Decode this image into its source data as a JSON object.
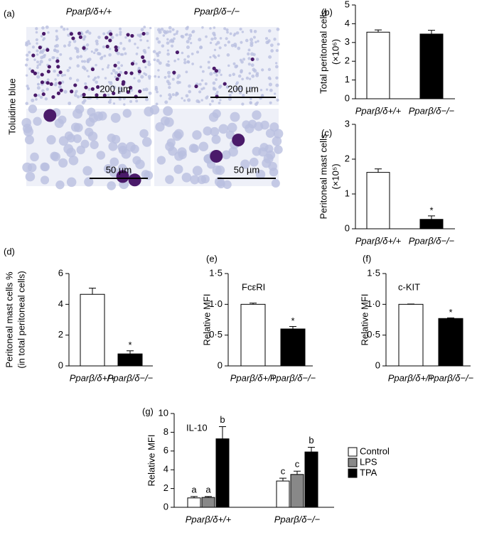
{
  "figure": {
    "panel": "(a)",
    "columns": [
      "Pparβ/δ+/+",
      "Pparβ/δ−/−"
    ],
    "row_label": "Toluidine blue",
    "scale_bars": [
      "200 µm",
      "200 µm",
      "50 µm",
      "50 µm"
    ]
  },
  "chart_data": [
    {
      "type": "bar",
      "panel": "(b)",
      "ylabel": [
        "Total peritoneal cells",
        "(×10⁶)"
      ],
      "categories": [
        "Pparβ/δ+/+",
        "Pparβ/δ−/−"
      ],
      "values": [
        3.55,
        3.45
      ],
      "errors": [
        0.12,
        0.2
      ],
      "colors": [
        "#ffffff",
        "#000000"
      ],
      "ylim": [
        0,
        5
      ],
      "yticks": [
        0,
        1,
        2,
        3,
        4,
        5
      ],
      "significance": [
        null,
        null
      ]
    },
    {
      "type": "bar",
      "panel": "(c)",
      "ylabel": [
        "Peritoneal mast cells",
        "(×10⁵)"
      ],
      "categories": [
        "Pparβ/δ+/+",
        "Pparβ/δ−/−"
      ],
      "values": [
        1.62,
        0.27
      ],
      "errors": [
        0.1,
        0.1
      ],
      "colors": [
        "#ffffff",
        "#000000"
      ],
      "ylim": [
        0,
        3
      ],
      "yticks": [
        0,
        1,
        2,
        3
      ],
      "significance": [
        null,
        "*"
      ]
    },
    {
      "type": "bar",
      "panel": "(d)",
      "ylabel": [
        "Peritoneal mast cells %",
        "(in total peritoneal cells)"
      ],
      "categories": [
        "Pparβ/δ+/+",
        "Pparβ/δ−/−"
      ],
      "values": [
        4.65,
        0.78
      ],
      "errors": [
        0.4,
        0.2
      ],
      "colors": [
        "#ffffff",
        "#000000"
      ],
      "ylim": [
        0,
        6
      ],
      "yticks": [
        0,
        2,
        4,
        6
      ],
      "significance": [
        null,
        "*"
      ]
    },
    {
      "type": "bar",
      "panel": "(e)",
      "label": "FcεRI",
      "ylabel": [
        "Relative MFI"
      ],
      "categories": [
        "Pparβ/δ+/+",
        "Pparβ/δ−/−"
      ],
      "values": [
        1.0,
        0.6
      ],
      "errors": [
        0.02,
        0.04
      ],
      "colors": [
        "#ffffff",
        "#000000"
      ],
      "ylim": [
        0,
        1.5
      ],
      "yticks": [
        0,
        {
          "value": 0.5,
          "label": "0·5"
        },
        {
          "value": 1.0,
          "label": "1·0"
        },
        {
          "value": 1.5,
          "label": "1·5"
        }
      ],
      "significance": [
        null,
        "*"
      ]
    },
    {
      "type": "bar",
      "panel": "(f)",
      "label": "c-KIT",
      "ylabel": [
        "Relative MFI"
      ],
      "categories": [
        "Pparβ/δ+/+",
        "Pparβ/δ−/−"
      ],
      "values": [
        1.0,
        0.77
      ],
      "errors": [
        0.005,
        0.01
      ],
      "colors": [
        "#ffffff",
        "#000000"
      ],
      "ylim": [
        0,
        1.5
      ],
      "yticks": [
        0,
        {
          "value": 0.5,
          "label": "0·5"
        },
        {
          "value": 1.0,
          "label": "1·0"
        },
        {
          "value": 1.5,
          "label": "1·5"
        }
      ],
      "significance": [
        null,
        "*"
      ]
    },
    {
      "type": "grouped_bar",
      "panel": "(g)",
      "label": "IL-10",
      "ylabel": [
        "Relative MFI"
      ],
      "categories": [
        "Pparβ/δ+/+",
        "Pparβ/δ−/−"
      ],
      "ylim": [
        0,
        10
      ],
      "yticks": [
        0,
        2,
        4,
        6,
        8,
        10
      ],
      "series": [
        {
          "name": "Control",
          "color": "#ffffff",
          "values": [
            1.0,
            2.8
          ],
          "errors": [
            0.15,
            0.3
          ],
          "letters": [
            "a",
            "c"
          ]
        },
        {
          "name": "LPS",
          "color": "#888888",
          "values": [
            1.05,
            3.5
          ],
          "errors": [
            0.1,
            0.35
          ],
          "letters": [
            "a",
            "c"
          ]
        },
        {
          "name": "TPA",
          "color": "#000000",
          "values": [
            7.3,
            5.9
          ],
          "errors": [
            1.3,
            0.5
          ],
          "letters": [
            "b",
            "b"
          ]
        }
      ]
    }
  ]
}
